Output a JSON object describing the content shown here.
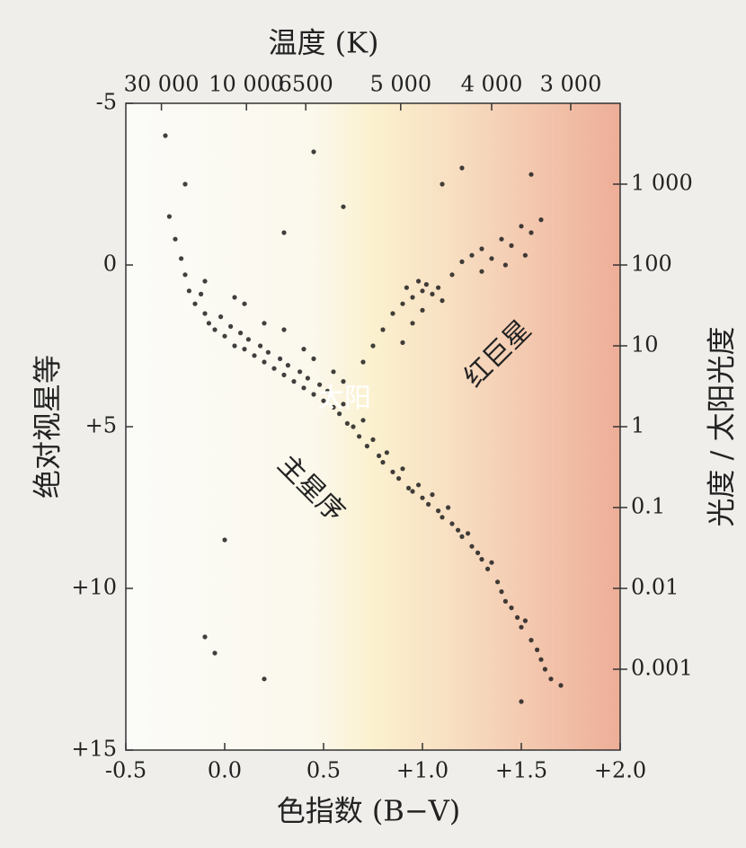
{
  "chart_data": {
    "type": "scatter",
    "title": "温度 (K)",
    "x_label": "色指数 (B−V)",
    "y_label": "绝对视星等",
    "y2_label": "光度 / 太阳光度",
    "annotations": [
      "太阳",
      "主星序",
      "红巨星"
    ],
    "color": "#1e1e1e",
    "grid": false,
    "xlim": [
      -0.5,
      2.0
    ],
    "xticks": [
      -0.5,
      {
        "value": 0,
        "label": "0.0"
      },
      0.5,
      {
        "value": 1,
        "label": "+1.0"
      },
      {
        "value": 1.5,
        "label": "+1.5"
      },
      {
        "value": 2,
        "label": "+2.0"
      }
    ],
    "x2ticks": [
      {
        "value": -0.32,
        "label": "30 000"
      },
      {
        "value": 0.11,
        "label": "10 000"
      },
      {
        "value": 0.41,
        "label": "6500"
      },
      {
        "value": 0.89,
        "label": "5 000"
      },
      {
        "value": 1.35,
        "label": "4 000"
      },
      {
        "value": 1.75,
        "label": "3 000"
      }
    ],
    "ylim": [
      -5,
      15
    ],
    "y_inverted": true,
    "yticks": [
      -5,
      0,
      {
        "value": 5,
        "label": "+5"
      },
      {
        "value": 10,
        "label": "+10"
      },
      {
        "value": 15,
        "label": "+15"
      }
    ],
    "y2lim": [
      0.0001,
      10000
    ],
    "y2_log": true,
    "y2ticks": [
      {
        "value": 1000,
        "label": "1 000"
      },
      100,
      10,
      1,
      0.1,
      0.01,
      0.001
    ],
    "x": [
      -0.28,
      -0.25,
      -0.22,
      -0.2,
      -0.18,
      -0.15,
      -0.12,
      -0.1,
      -0.08,
      -0.05,
      -0.02,
      0,
      0.03,
      0.05,
      0.08,
      0.1,
      0.12,
      0.15,
      0.18,
      0.2,
      0.22,
      0.25,
      0.28,
      0.3,
      0.32,
      0.35,
      0.38,
      0.4,
      0.42,
      0.45,
      0.48,
      0.5,
      0.52,
      0.55,
      0.58,
      0.6,
      0.62,
      0.65,
      0.68,
      0.7,
      0.72,
      0.75,
      0.78,
      0.8,
      0.82,
      0.85,
      0.88,
      0.9,
      0.93,
      0.95,
      0.98,
      1.0,
      1.03,
      1.05,
      1.08,
      1.1,
      1.13,
      1.15,
      1.18,
      1.2,
      1.23,
      1.25,
      1.28,
      1.3,
      1.33,
      1.35,
      1.38,
      1.4,
      1.42,
      1.45,
      1.48,
      1.5,
      1.52,
      1.55,
      1.58,
      1.6,
      1.62,
      1.65,
      0.1,
      0.2,
      0.3,
      0.4,
      0.45,
      0.55,
      0.6,
      -0.1,
      0.05,
      0.7,
      0.75,
      0.8,
      0.85,
      0.9,
      0.95,
      1.0,
      1.02,
      1.05,
      0.98,
      1.08,
      1.1,
      0.92,
      1.0,
      0.95,
      0.9,
      1.15,
      1.2,
      1.25,
      1.3,
      1.35,
      1.4,
      1.45,
      1.5,
      1.55,
      1.6,
      1.3,
      1.42,
      1.52,
      -0.3,
      -0.2,
      0.3,
      0.6,
      1.2,
      1.55,
      -0.05,
      -0.1,
      0.2,
      1.5,
      0,
      1.1,
      0.45,
      1.7
    ],
    "values": [
      -1.5,
      -0.8,
      -0.2,
      0.3,
      0.8,
      1.2,
      0.9,
      1.5,
      1.8,
      2.0,
      1.6,
      2.2,
      1.9,
      2.5,
      2.1,
      2.6,
      2.3,
      2.8,
      2.5,
      3.0,
      2.7,
      3.2,
      2.9,
      3.4,
      3.1,
      3.6,
      3.3,
      3.8,
      3.5,
      4.0,
      3.7,
      4.2,
      3.9,
      4.4,
      4.6,
      4.3,
      4.9,
      5.0,
      5.3,
      4.8,
      5.6,
      5.4,
      5.9,
      6.1,
      5.8,
      6.4,
      6.6,
      6.3,
      6.9,
      7.0,
      6.8,
      7.2,
      7.4,
      7.1,
      7.6,
      7.8,
      7.5,
      8.0,
      8.2,
      8.4,
      8.3,
      8.7,
      8.9,
      9.1,
      9.4,
      9.2,
      9.8,
      10.1,
      10.4,
      10.6,
      10.9,
      11.2,
      11.0,
      11.6,
      11.9,
      12.2,
      12.5,
      12.8,
      1.2,
      1.8,
      2.0,
      2.6,
      2.9,
      3.3,
      3.6,
      0.5,
      1.0,
      3.0,
      2.5,
      2.0,
      1.5,
      1.2,
      1.0,
      0.8,
      0.6,
      0.9,
      0.5,
      0.7,
      1.1,
      0.7,
      1.4,
      1.8,
      2.4,
      0.3,
      -0.1,
      -0.3,
      -0.5,
      -0.2,
      -0.8,
      -0.6,
      -1.2,
      -1.0,
      -1.4,
      0.2,
      0.0,
      -0.3,
      -4.0,
      -2.5,
      -1.0,
      -1.8,
      -3.0,
      -2.8,
      12.0,
      11.5,
      12.8,
      13.5,
      8.5,
      -2.5,
      -3.5,
      13.0
    ]
  }
}
